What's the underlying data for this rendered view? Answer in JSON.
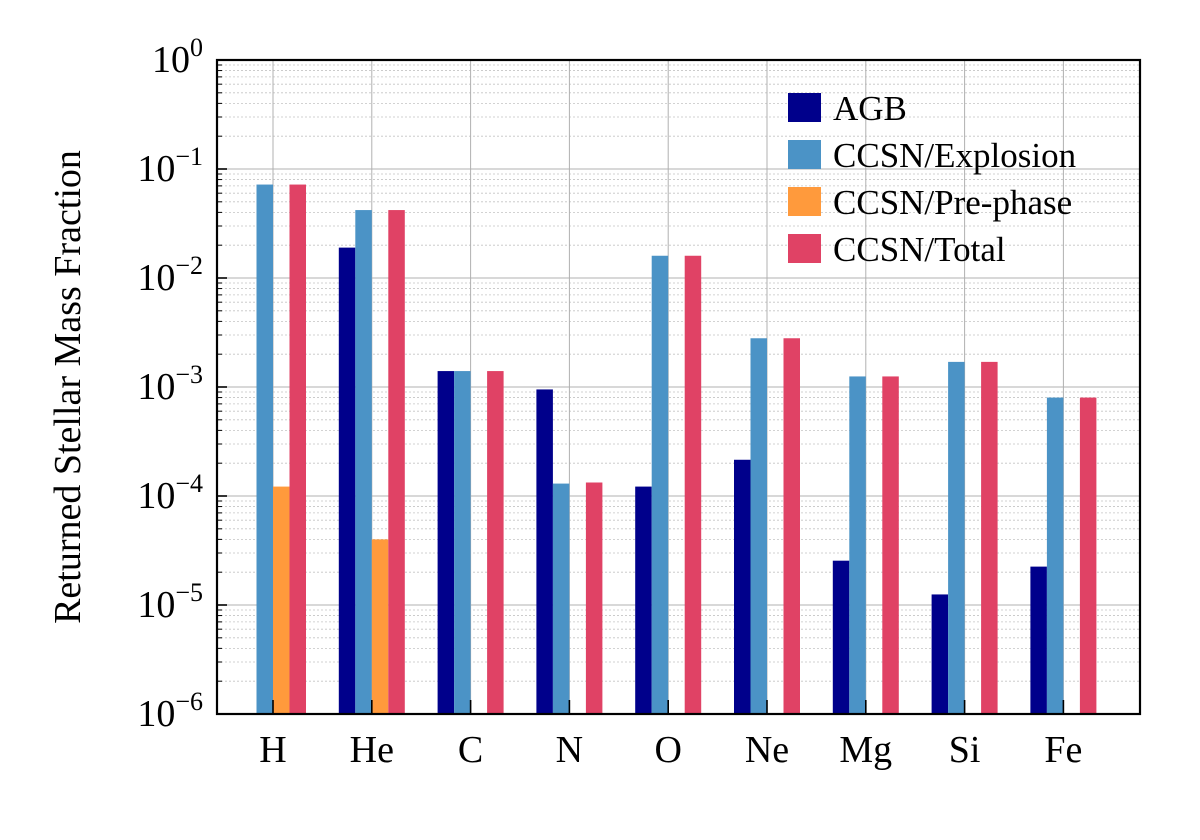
{
  "chart_data": {
    "type": "bar",
    "title": "",
    "xlabel": "",
    "ylabel": "Returned Stellar Mass Fraction",
    "yscale": "log",
    "ylim": [
      1e-06,
      1
    ],
    "ytick_exponents": [
      "0",
      "−1",
      "−2",
      "−3",
      "−4",
      "−5",
      "−6"
    ],
    "ytick_base": "10",
    "grid": true,
    "legend_position": "top-right",
    "categories": [
      "H",
      "He",
      "C",
      "N",
      "O",
      "Ne",
      "Mg",
      "Si",
      "Fe"
    ],
    "series": [
      {
        "name": "AGB",
        "color": "#00008b",
        "values": [
          null,
          0.019,
          0.0014,
          0.00095,
          0.000122,
          0.000215,
          2.55e-05,
          1.25e-05,
          2.25e-05
        ]
      },
      {
        "name": "CCSN/Explosion",
        "color": "#4b93c6",
        "values": [
          0.072,
          0.042,
          0.0014,
          0.00013,
          0.016,
          0.0028,
          0.00125,
          0.0017,
          0.0008
        ]
      },
      {
        "name": "CCSN/Pre-phase",
        "color": "#ff9a3c",
        "values": [
          0.000122,
          4e-05,
          null,
          null,
          null,
          null,
          null,
          null,
          null
        ]
      },
      {
        "name": "CCSN/Total",
        "color": "#e04265",
        "values": [
          0.072,
          0.042,
          0.0014,
          0.000133,
          0.016,
          0.0028,
          0.00125,
          0.0017,
          0.0008
        ]
      }
    ]
  }
}
